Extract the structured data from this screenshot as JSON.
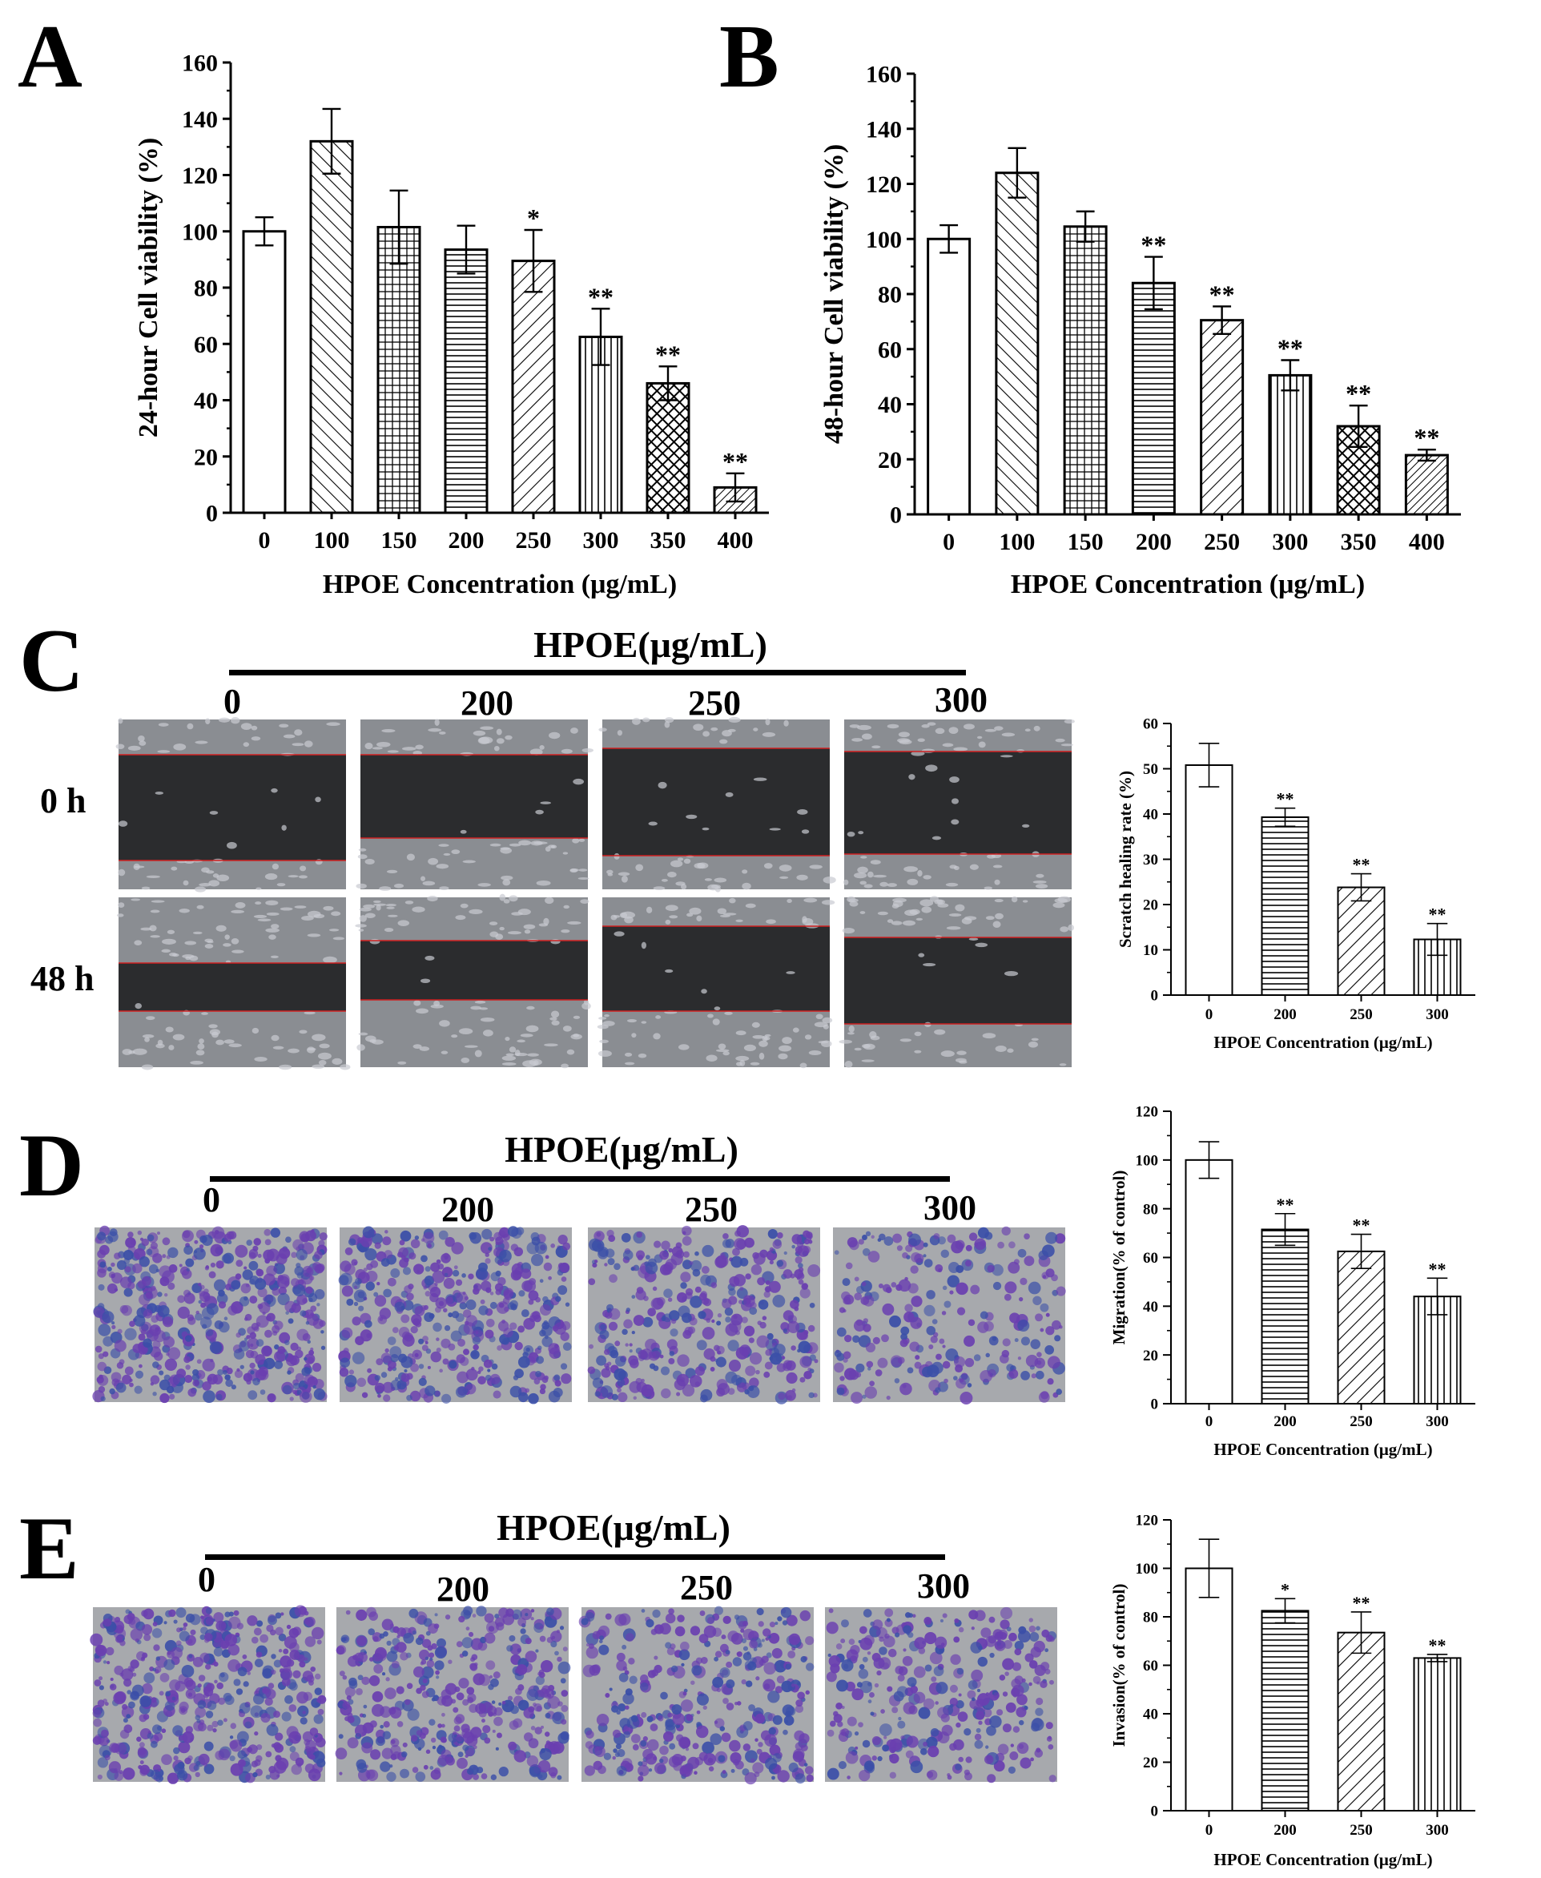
{
  "panels": {
    "A": {
      "letter": "A"
    },
    "B": {
      "letter": "B"
    },
    "C": {
      "letter": "C",
      "header": "HPOE(μg/mL)",
      "doses": [
        "0",
        "200",
        "250",
        "300"
      ],
      "rows": [
        "0 h",
        "48 h"
      ]
    },
    "D": {
      "letter": "D",
      "header": "HPOE(μg/mL)",
      "doses": [
        "0",
        "200",
        "250",
        "300"
      ]
    },
    "E": {
      "letter": "E",
      "header": "HPOE(μg/mL)",
      "doses": [
        "0",
        "200",
        "250",
        "300"
      ]
    }
  },
  "colors": {
    "ink": "#000000",
    "micro_gray": "#8a8d92",
    "micro_dark": "#2b2c2e",
    "stain_purple": "#6a3fb0",
    "stain_blue": "#3b4fa8",
    "scratch_line": "#d02020"
  },
  "chart_data": [
    {
      "id": "A",
      "type": "bar",
      "categories": [
        "0",
        "100",
        "150",
        "200",
        "250",
        "300",
        "350",
        "400"
      ],
      "values": [
        100,
        132,
        101.5,
        93.5,
        89.5,
        62.5,
        46,
        9
      ],
      "errors": [
        5,
        11.5,
        13,
        8.5,
        11,
        10,
        6,
        5
      ],
      "significance": [
        "",
        "",
        "",
        "",
        "*",
        "**",
        "**",
        "**"
      ],
      "patterns": [
        "none",
        "diag-back",
        "grid",
        "horiz",
        "diag",
        "vert",
        "cross",
        "diag-dense"
      ],
      "xlabel": "HPOE Concentration (μg/mL)",
      "ylabel": "24-hour Cell viability (%)",
      "ylim": [
        0,
        160
      ],
      "yticks": [
        0,
        20,
        40,
        60,
        80,
        100,
        120,
        140,
        160
      ],
      "grid": false
    },
    {
      "id": "B",
      "type": "bar",
      "categories": [
        "0",
        "100",
        "150",
        "200",
        "250",
        "300",
        "350",
        "400"
      ],
      "values": [
        100,
        124,
        104.5,
        84,
        70.5,
        50.5,
        32,
        21.5
      ],
      "errors": [
        5,
        9,
        5.5,
        9.5,
        5,
        5.5,
        7.5,
        2
      ],
      "significance": [
        "",
        "",
        "",
        "**",
        "**",
        "**",
        "**",
        "**"
      ],
      "patterns": [
        "none",
        "diag-back",
        "grid",
        "horiz",
        "diag",
        "vert",
        "cross",
        "diag-dense"
      ],
      "xlabel": "HPOE Concentration (μg/mL)",
      "ylabel": "48-hour Cell viability (%)",
      "ylim": [
        0,
        160
      ],
      "yticks": [
        0,
        20,
        40,
        60,
        80,
        100,
        120,
        140,
        160
      ],
      "grid": false
    },
    {
      "id": "C",
      "type": "bar",
      "categories": [
        "0",
        "200",
        "250",
        "300"
      ],
      "values": [
        50.8,
        39.3,
        23.8,
        12.3
      ],
      "errors": [
        4.8,
        2,
        3,
        3.5
      ],
      "significance": [
        "",
        "**",
        "**",
        "**"
      ],
      "patterns": [
        "none",
        "horiz",
        "diag",
        "vert"
      ],
      "xlabel": "HPOE Concentration (μg/mL)",
      "ylabel": "Scratch healing rate (%)",
      "ylim": [
        0,
        60
      ],
      "yticks": [
        0,
        10,
        20,
        30,
        40,
        50,
        60
      ],
      "grid": false
    },
    {
      "id": "D",
      "type": "bar",
      "categories": [
        "0",
        "200",
        "250",
        "300"
      ],
      "values": [
        100,
        71.5,
        62.5,
        44
      ],
      "errors": [
        7.5,
        6.5,
        7,
        7.5
      ],
      "significance": [
        "",
        "**",
        "**",
        "**"
      ],
      "patterns": [
        "none",
        "horiz",
        "diag",
        "vert"
      ],
      "xlabel": "HPOE Concentration (μg/mL)",
      "ylabel": "Migration(% of control)",
      "ylim": [
        0,
        120
      ],
      "yticks": [
        0,
        20,
        40,
        60,
        80,
        100,
        120
      ],
      "grid": false
    },
    {
      "id": "E",
      "type": "bar",
      "categories": [
        "0",
        "200",
        "250",
        "300"
      ],
      "values": [
        100,
        82.5,
        73.5,
        63
      ],
      "errors": [
        12,
        5,
        8.5,
        1.5
      ],
      "significance": [
        "",
        "*",
        "**",
        "**"
      ],
      "patterns": [
        "none",
        "horiz",
        "diag",
        "vert"
      ],
      "xlabel": "HPOE Concentration (μg/mL)",
      "ylabel": "Invasion(% of control)",
      "ylim": [
        0,
        120
      ],
      "yticks": [
        0,
        20,
        40,
        60,
        80,
        100,
        120
      ],
      "grid": false
    }
  ]
}
